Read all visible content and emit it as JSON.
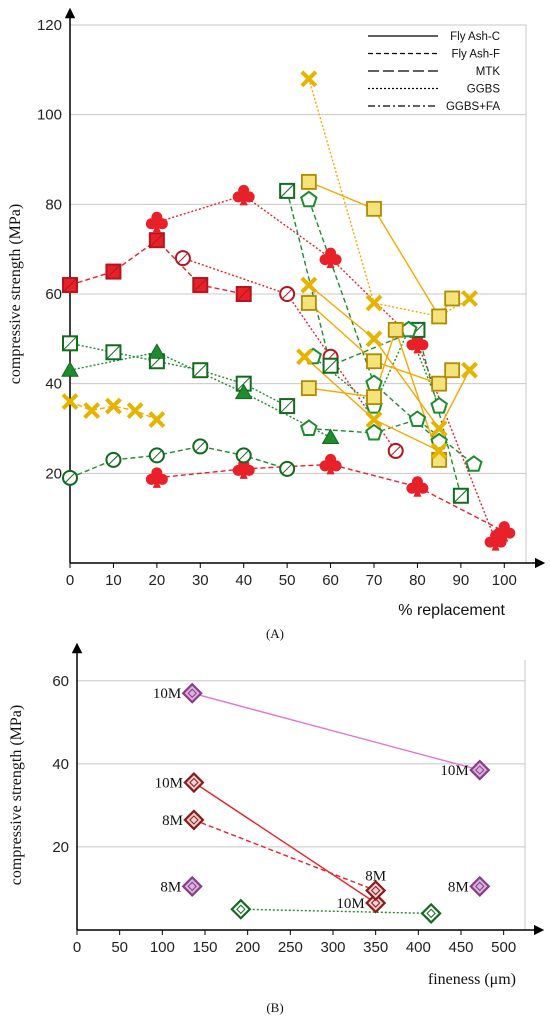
{
  "colors": {
    "red": "#e8202a",
    "darkred": "#b3161e",
    "green": "#1e8c2e",
    "darkgreen": "#116a1d",
    "gold": "#e6b400",
    "lightgold": "#f5e27a",
    "orange": "#f5a800",
    "pink": "#e075d0",
    "purple": "#8a3b8a",
    "lavender": "#d9b3d9",
    "maroon": "#8b1a1a",
    "grid": "#c8c8c8"
  },
  "chart_data": [
    {
      "panel": "(A)",
      "type": "scatter",
      "xlabel": "% replacement",
      "ylabel": "compressive strength (MPa)",
      "xlim": [
        0,
        105
      ],
      "ylim": [
        0,
        120
      ],
      "xticks": [
        "0",
        "10",
        "20",
        "30",
        "40",
        "50",
        "60",
        "70",
        "80",
        "90",
        "100"
      ],
      "yticks": [
        "20",
        "40",
        "60",
        "80",
        "100",
        "120"
      ],
      "grid": "horizontal",
      "legend_position": "top-right",
      "legend": [
        {
          "label": "Fly Ash-C",
          "dash": "solid"
        },
        {
          "label": "Fly Ash-F",
          "dash": "short-dash"
        },
        {
          "label": "MTK",
          "dash": "long-dash"
        },
        {
          "label": "GGBS",
          "dash": "dotted"
        },
        {
          "label": "GGBS+FA",
          "dash": "dash-dot"
        }
      ],
      "series": [
        {
          "marker": "square-hatch",
          "color": "red",
          "dash": "short-dash",
          "points": [
            [
              0,
              62
            ],
            [
              10,
              65
            ],
            [
              20,
              72
            ],
            [
              30,
              62
            ],
            [
              40,
              60
            ]
          ]
        },
        {
          "marker": "club",
          "color": "red",
          "dash": "dotted",
          "points": [
            [
              20,
              76
            ],
            [
              40,
              82
            ],
            [
              60,
              68
            ],
            [
              80,
              49
            ],
            [
              98,
              5
            ]
          ]
        },
        {
          "marker": "circle-cross",
          "color": "red",
          "dash": "dotted",
          "points": [
            [
              26,
              68
            ],
            [
              50,
              60
            ],
            [
              60,
              46
            ],
            [
              75,
              25
            ]
          ]
        },
        {
          "marker": "club",
          "color": "red",
          "dash": "short-dash",
          "points": [
            [
              20,
              19
            ],
            [
              40,
              21
            ],
            [
              60,
              22
            ],
            [
              80,
              17
            ],
            [
              100,
              7
            ]
          ]
        },
        {
          "marker": "square-hatch",
          "color": "green",
          "dash": "dotted",
          "points": [
            [
              0,
              49
            ],
            [
              10,
              47
            ],
            [
              20,
              45
            ],
            [
              30,
              43
            ],
            [
              40,
              40
            ],
            [
              50,
              35
            ]
          ]
        },
        {
          "marker": "triangle",
          "color": "green",
          "dash": "dotted",
          "points": [
            [
              0,
              43
            ],
            [
              20,
              47
            ],
            [
              40,
              38
            ],
            [
              60,
              28
            ]
          ]
        },
        {
          "marker": "circle-cross",
          "color": "green",
          "dash": "short-dash",
          "points": [
            [
              0,
              19
            ],
            [
              10,
              23
            ],
            [
              20,
              24
            ],
            [
              30,
              26
            ],
            [
              40,
              24
            ],
            [
              50,
              21
            ]
          ]
        },
        {
          "marker": "pentagon",
          "color": "green",
          "dash": "short-dash",
          "points": [
            [
              55,
              30
            ],
            [
              70,
              29
            ],
            [
              80,
              32
            ],
            [
              93,
              22
            ]
          ]
        },
        {
          "marker": "square-hatch",
          "color": "green",
          "dash": "short-dash",
          "points": [
            [
              50,
              83
            ],
            [
              60,
              44
            ],
            [
              80,
              52
            ],
            [
              90,
              15
            ]
          ]
        },
        {
          "marker": "pentagon",
          "color": "green",
          "dash": "short-dash",
          "points": [
            [
              55,
              81
            ],
            [
              70,
              40
            ],
            [
              85,
              27
            ]
          ]
        },
        {
          "marker": "pentagon",
          "color": "green",
          "dash": "dotted",
          "points": [
            [
              56,
              46
            ],
            [
              70,
              35
            ],
            [
              78,
              52
            ],
            [
              85,
              35
            ]
          ]
        },
        {
          "marker": "x",
          "color": "gold",
          "dash": "short-dash",
          "points": [
            [
              0,
              36
            ],
            [
              5,
              34
            ],
            [
              10,
              35
            ],
            [
              15,
              34
            ],
            [
              20,
              32
            ]
          ]
        },
        {
          "marker": "x",
          "color": "gold",
          "dash": "dotted",
          "points": [
            [
              55,
              108
            ],
            [
              70,
              58
            ],
            [
              85,
              55
            ],
            [
              92,
              59
            ]
          ]
        },
        {
          "marker": "square",
          "color": "gold",
          "dash": "solid",
          "points": [
            [
              55,
              85
            ],
            [
              70,
              79
            ],
            [
              85,
              55
            ],
            [
              88,
              59
            ]
          ]
        },
        {
          "marker": "square",
          "color": "gold",
          "dash": "solid",
          "points": [
            [
              55,
              58
            ],
            [
              70,
              45
            ],
            [
              85,
              40
            ],
            [
              88,
              43
            ]
          ]
        },
        {
          "marker": "square",
          "color": "gold",
          "dash": "solid",
          "points": [
            [
              55,
              39
            ],
            [
              70,
              37
            ],
            [
              75,
              52
            ],
            [
              85,
              23
            ]
          ]
        },
        {
          "marker": "x",
          "color": "gold",
          "dash": "solid",
          "points": [
            [
              55,
              62
            ],
            [
              70,
              50
            ],
            [
              85,
              30
            ],
            [
              92,
              43
            ]
          ]
        },
        {
          "marker": "x",
          "color": "gold",
          "dash": "solid",
          "points": [
            [
              54,
              46
            ],
            [
              70,
              32
            ],
            [
              85,
              25
            ]
          ]
        }
      ]
    },
    {
      "panel": "(B)",
      "type": "scatter",
      "xlabel": "fineness (μm)",
      "ylabel": "compressive strength (MPa)",
      "xlim": [
        0,
        525
      ],
      "ylim": [
        0,
        65
      ],
      "xticks": [
        "0",
        "50",
        "100",
        "150",
        "200",
        "250",
        "300",
        "350",
        "400",
        "450",
        "500"
      ],
      "yticks": [
        "20",
        "40",
        "60"
      ],
      "grid": "horizontal",
      "series": [
        {
          "marker": "diamond",
          "color": "pink",
          "dash": "solid",
          "points": [
            [
              135,
              57
            ],
            [
              472,
              38.5
            ]
          ]
        },
        {
          "marker": "diamond",
          "color": "red",
          "dash": "solid",
          "points": [
            [
              137,
              35.5
            ],
            [
              350,
              6.5
            ]
          ]
        },
        {
          "marker": "diamond",
          "color": "red",
          "dash": "short-dash",
          "points": [
            [
              137,
              26.5
            ],
            [
              350,
              9.5
            ]
          ]
        },
        {
          "marker": "diamond",
          "color": "green",
          "dash": "dotted",
          "points": [
            [
              192,
              5
            ],
            [
              415,
              4
            ]
          ]
        },
        {
          "marker": "diamond",
          "color": "pink",
          "dash": "none",
          "points": [
            [
              135,
              10.5
            ],
            [
              472,
              10.5
            ]
          ]
        }
      ],
      "labels": [
        {
          "text": "10M",
          "x": 135,
          "y": 57,
          "side": "left"
        },
        {
          "text": "10M",
          "x": 472,
          "y": 38.5,
          "side": "left"
        },
        {
          "text": "10M",
          "x": 137,
          "y": 35.5,
          "side": "left"
        },
        {
          "text": "8M",
          "x": 137,
          "y": 26.5,
          "side": "left"
        },
        {
          "text": "8M",
          "x": 135,
          "y": 10.5,
          "side": "left"
        },
        {
          "text": "8M",
          "x": 350,
          "y": 9.5,
          "side": "above"
        },
        {
          "text": "10M",
          "x": 350,
          "y": 6.5,
          "side": "left"
        },
        {
          "text": "8M",
          "x": 472,
          "y": 10.5,
          "side": "left"
        }
      ]
    }
  ]
}
